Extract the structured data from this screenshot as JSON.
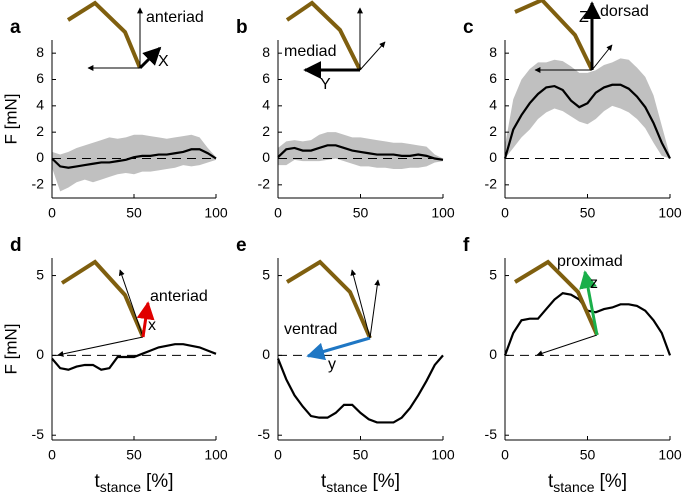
{
  "chart_data": [
    {
      "type": "line",
      "label": "a",
      "ylabel": "F  [mN]",
      "color": "#000000",
      "band_color": "#c0c0c0",
      "x": [
        0,
        5,
        10,
        15,
        20,
        25,
        30,
        35,
        40,
        45,
        50,
        55,
        60,
        65,
        70,
        75,
        80,
        85,
        90,
        95,
        100
      ],
      "values": [
        0,
        -0.6,
        -0.7,
        -0.6,
        -0.5,
        -0.4,
        -0.3,
        -0.3,
        -0.2,
        -0.1,
        0.1,
        0.2,
        0.2,
        0.3,
        0.3,
        0.4,
        0.5,
        0.7,
        0.7,
        0.4,
        0
      ],
      "band": {
        "upper": [
          0.5,
          0.3,
          0.5,
          0.8,
          1.0,
          1.2,
          1.4,
          1.6,
          1.5,
          1.6,
          1.8,
          1.8,
          1.7,
          1.6,
          1.5,
          1.6,
          1.7,
          1.8,
          1.6,
          0.8,
          0.1
        ],
        "lower": [
          -0.7,
          -2.5,
          -2.2,
          -1.8,
          -1.6,
          -1.8,
          -1.6,
          -1.4,
          -1.2,
          -1.1,
          -1.2,
          -1.0,
          -1.0,
          -0.9,
          -0.8,
          -0.7,
          -0.5,
          -0.6,
          -0.5,
          -0.3,
          -0.1
        ]
      },
      "xlim": [
        0,
        100
      ],
      "xticks": [
        0,
        50,
        100
      ],
      "ylim": [
        -3,
        9
      ],
      "yticks": [
        -2,
        0,
        2,
        4,
        6,
        8
      ],
      "annotations": [
        "anteriad",
        "X"
      ]
    },
    {
      "type": "line",
      "label": "b",
      "color": "#000000",
      "band_color": "#c0c0c0",
      "x": [
        0,
        5,
        10,
        15,
        20,
        25,
        30,
        35,
        40,
        45,
        50,
        55,
        60,
        65,
        70,
        75,
        80,
        85,
        90,
        95,
        100
      ],
      "values": [
        0.1,
        0.7,
        0.8,
        0.6,
        0.6,
        0.8,
        1.0,
        1.0,
        0.8,
        0.6,
        0.5,
        0.4,
        0.3,
        0.3,
        0.3,
        0.2,
        0.2,
        0.3,
        0.2,
        0,
        -0.1
      ],
      "band": {
        "upper": [
          0.8,
          1.3,
          1.4,
          1.3,
          1.4,
          1.8,
          2.0,
          2.0,
          1.8,
          1.6,
          1.6,
          1.5,
          1.4,
          1.3,
          1.2,
          1.2,
          1.1,
          1.0,
          0.9,
          0.3,
          0
        ],
        "lower": [
          -0.5,
          -0.5,
          -0.1,
          -0.2,
          -0.2,
          -0.2,
          -0.1,
          0,
          -0.2,
          -0.4,
          -0.6,
          -0.6,
          -0.7,
          -0.7,
          -0.8,
          -0.8,
          -0.7,
          -0.7,
          -0.6,
          -0.3,
          -0.2
        ]
      },
      "xlim": [
        0,
        100
      ],
      "xticks": [
        0,
        50,
        100
      ],
      "ylim": [
        -3,
        9
      ],
      "yticks": [
        -2,
        0,
        2,
        4,
        6,
        8
      ],
      "annotations": [
        "mediad",
        "Y"
      ]
    },
    {
      "type": "line",
      "label": "c",
      "color": "#000000",
      "band_color": "#c0c0c0",
      "x": [
        0,
        5,
        10,
        15,
        20,
        25,
        30,
        35,
        40,
        45,
        50,
        55,
        60,
        65,
        70,
        75,
        80,
        85,
        90,
        95,
        100
      ],
      "values": [
        0,
        2.2,
        3.3,
        4.2,
        4.9,
        5.4,
        5.5,
        5.2,
        4.4,
        3.9,
        4.2,
        5.0,
        5.4,
        5.6,
        5.6,
        5.3,
        4.7,
        3.9,
        2.7,
        1.2,
        0
      ],
      "band": {
        "upper": [
          1,
          4.5,
          6.0,
          6.8,
          7.3,
          7.3,
          7.5,
          7.4,
          7.0,
          6.5,
          6.5,
          6.7,
          7.1,
          7.3,
          7.6,
          7.5,
          6.9,
          6.2,
          4.8,
          2.5,
          0.2
        ],
        "lower": [
          0,
          0.8,
          1.6,
          2.2,
          3.0,
          3.5,
          3.8,
          3.6,
          3.2,
          2.8,
          2.6,
          3.0,
          3.6,
          4.0,
          3.8,
          3.5,
          3.0,
          2.3,
          1.2,
          0.2,
          0
        ]
      },
      "xlim": [
        0,
        100
      ],
      "xticks": [
        0,
        50,
        100
      ],
      "ylim": [
        -3,
        9
      ],
      "yticks": [
        -2,
        0,
        2,
        4,
        6,
        8
      ],
      "annotations": [
        "Z",
        "dorsad"
      ]
    },
    {
      "type": "line",
      "label": "d",
      "ylabel": "F  [mN]",
      "xlabel": {
        "main": "t",
        "sub": "stance",
        "unit": "[%]"
      },
      "color": "#000000",
      "x": [
        0,
        5,
        10,
        15,
        20,
        25,
        30,
        35,
        40,
        45,
        50,
        55,
        60,
        65,
        70,
        75,
        80,
        85,
        90,
        95,
        100
      ],
      "values": [
        -0.2,
        -0.8,
        -0.9,
        -0.7,
        -0.6,
        -0.6,
        -0.9,
        -0.8,
        -0.1,
        -0.1,
        -0.1,
        0.1,
        0.3,
        0.5,
        0.6,
        0.7,
        0.7,
        0.6,
        0.5,
        0.3,
        0.1
      ],
      "xlim": [
        0,
        100
      ],
      "xticks": [
        0,
        50,
        100
      ],
      "ylim": [
        -5.3,
        6.1
      ],
      "yticks": [
        -5,
        0,
        5
      ],
      "annotations": [
        "anteriad",
        "x"
      ]
    },
    {
      "type": "line",
      "label": "e",
      "xlabel": {
        "main": "t",
        "sub": "stance",
        "unit": "[%]"
      },
      "color": "#000000",
      "x": [
        0,
        5,
        10,
        15,
        20,
        25,
        30,
        35,
        40,
        45,
        50,
        55,
        60,
        65,
        70,
        75,
        80,
        85,
        90,
        95,
        100
      ],
      "values": [
        -0.2,
        -1.5,
        -2.5,
        -3.2,
        -3.8,
        -3.9,
        -3.9,
        -3.6,
        -3.1,
        -3.1,
        -3.6,
        -4.0,
        -4.2,
        -4.2,
        -4.2,
        -3.9,
        -3.3,
        -2.5,
        -1.6,
        -0.6,
        0
      ],
      "xlim": [
        0,
        100
      ],
      "xticks": [
        0,
        50,
        100
      ],
      "ylim": [
        -5.3,
        6.1
      ],
      "yticks": [
        -5,
        0,
        5
      ],
      "annotations": [
        "ventrad",
        "y"
      ]
    },
    {
      "type": "line",
      "label": "f",
      "xlabel": {
        "main": "t",
        "sub": "stance",
        "unit": "[%]"
      },
      "color": "#000000",
      "x": [
        0,
        5,
        10,
        15,
        20,
        25,
        30,
        35,
        40,
        45,
        50,
        55,
        60,
        65,
        70,
        75,
        80,
        85,
        90,
        95,
        100
      ],
      "values": [
        0,
        1.4,
        2.2,
        2.3,
        2.3,
        2.9,
        3.5,
        3.9,
        3.8,
        3.5,
        2.8,
        2.7,
        2.9,
        3.0,
        3.2,
        3.2,
        3.1,
        2.8,
        2.2,
        1.4,
        0
      ],
      "xlim": [
        0,
        100
      ],
      "xticks": [
        0,
        50,
        100
      ],
      "ylim": [
        -5.3,
        6.1
      ],
      "yticks": [
        -5,
        0,
        5
      ],
      "annotations": [
        "proximad",
        "z"
      ]
    }
  ]
}
